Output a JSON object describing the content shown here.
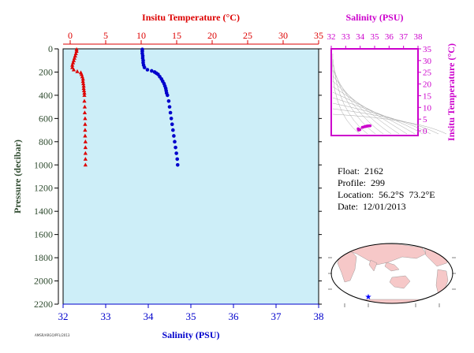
{
  "colors": {
    "temperature": "#dd0000",
    "salinity": "#0000cc",
    "inset": "#cc00cc",
    "pressure_axis": "#2e4a2e",
    "plot_bg": "#cdeef8",
    "map_land": "#f6c8c8",
    "map_ocean": "#ffffff",
    "map_marker": "#0000ff"
  },
  "info": {
    "float": "Float:  2162",
    "profile": "Profile:  299",
    "location": "Location:  56.2°S  73.2°E",
    "date": "Date:  12/01/2013"
  },
  "credit": "AMSR/ARGO/PFL/2013",
  "chart_data": [
    {
      "type": "scatter",
      "name": "profile",
      "title": "",
      "xlabel_bottom": "Salinity (PSU)",
      "xlabel_top": "Insitu Temperature (°C)",
      "ylabel": "Pressure (decibar)",
      "y_inverted": true,
      "ylim": [
        0,
        2200
      ],
      "xlim_salinity": [
        32,
        38
      ],
      "xlim_temperature": [
        -1,
        35
      ],
      "xticks_salinity": [
        32,
        33,
        34,
        35,
        36,
        37,
        38
      ],
      "xticks_temperature": [
        0,
        5,
        10,
        15,
        20,
        25,
        30,
        35
      ],
      "yticks": [
        0,
        200,
        400,
        600,
        800,
        1000,
        1200,
        1400,
        1600,
        1800,
        2000,
        2200
      ],
      "grid": false,
      "series": [
        {
          "axis": "temperature",
          "marker": "triangle",
          "points": [
            [
              0.9,
              5
            ],
            [
              0.9,
              20
            ],
            [
              0.8,
              40
            ],
            [
              0.7,
              60
            ],
            [
              0.6,
              80
            ],
            [
              0.5,
              100
            ],
            [
              0.4,
              120
            ],
            [
              0.3,
              140
            ],
            [
              0.3,
              160
            ],
            [
              0.5,
              180
            ],
            [
              1.0,
              195
            ],
            [
              1.5,
              205
            ],
            [
              1.6,
              220
            ],
            [
              1.7,
              240
            ],
            [
              1.8,
              260
            ],
            [
              1.8,
              280
            ],
            [
              1.85,
              300
            ],
            [
              1.9,
              320
            ],
            [
              1.9,
              340
            ],
            [
              1.95,
              360
            ],
            [
              2.0,
              380
            ],
            [
              2.0,
              400
            ],
            [
              2.0,
              450
            ],
            [
              2.05,
              500
            ],
            [
              2.05,
              550
            ],
            [
              2.1,
              600
            ],
            [
              2.1,
              650
            ],
            [
              2.1,
              700
            ],
            [
              2.1,
              750
            ],
            [
              2.15,
              800
            ],
            [
              2.15,
              850
            ],
            [
              2.15,
              900
            ],
            [
              2.15,
              950
            ],
            [
              2.15,
              1000
            ]
          ]
        },
        {
          "axis": "salinity",
          "marker": "circle",
          "points": [
            [
              33.86,
              5
            ],
            [
              33.86,
              20
            ],
            [
              33.86,
              40
            ],
            [
              33.87,
              60
            ],
            [
              33.87,
              80
            ],
            [
              33.88,
              100
            ],
            [
              33.88,
              120
            ],
            [
              33.89,
              140
            ],
            [
              33.91,
              160
            ],
            [
              33.98,
              180
            ],
            [
              34.08,
              190
            ],
            [
              34.15,
              200
            ],
            [
              34.19,
              210
            ],
            [
              34.23,
              220
            ],
            [
              34.27,
              240
            ],
            [
              34.31,
              260
            ],
            [
              34.34,
              280
            ],
            [
              34.37,
              300
            ],
            [
              34.39,
              320
            ],
            [
              34.41,
              340
            ],
            [
              34.42,
              360
            ],
            [
              34.43,
              380
            ],
            [
              34.45,
              400
            ],
            [
              34.48,
              450
            ],
            [
              34.5,
              500
            ],
            [
              34.52,
              550
            ],
            [
              34.54,
              600
            ],
            [
              34.56,
              650
            ],
            [
              34.58,
              700
            ],
            [
              34.6,
              750
            ],
            [
              34.62,
              800
            ],
            [
              34.64,
              850
            ],
            [
              34.66,
              900
            ],
            [
              34.68,
              950
            ],
            [
              34.69,
              1000
            ]
          ]
        }
      ]
    },
    {
      "type": "scatter",
      "name": "ts-diagram",
      "title": "",
      "xlabel": "Salinity (PSU)",
      "ylabel": "Insitu Temperature (°C)",
      "xlim": [
        32,
        38
      ],
      "ylim": [
        -2,
        35
      ],
      "xticks": [
        32,
        33,
        34,
        35,
        36,
        37,
        38
      ],
      "yticks": [
        0,
        5,
        10,
        15,
        20,
        25,
        30,
        35
      ],
      "density_contours": true,
      "series": [
        {
          "marker": "circle",
          "points": [
            [
              33.86,
              0.9
            ],
            [
              33.87,
              0.7
            ],
            [
              33.88,
              0.5
            ],
            [
              33.89,
              0.3
            ],
            [
              33.98,
              0.5
            ],
            [
              34.15,
              1.5
            ],
            [
              34.23,
              1.6
            ],
            [
              34.31,
              1.8
            ],
            [
              34.37,
              1.85
            ],
            [
              34.41,
              1.9
            ],
            [
              34.45,
              2.0
            ],
            [
              34.5,
              2.05
            ],
            [
              34.54,
              2.1
            ],
            [
              34.58,
              2.1
            ],
            [
              34.62,
              2.15
            ],
            [
              34.66,
              2.15
            ],
            [
              34.69,
              2.15
            ]
          ]
        }
      ]
    }
  ]
}
